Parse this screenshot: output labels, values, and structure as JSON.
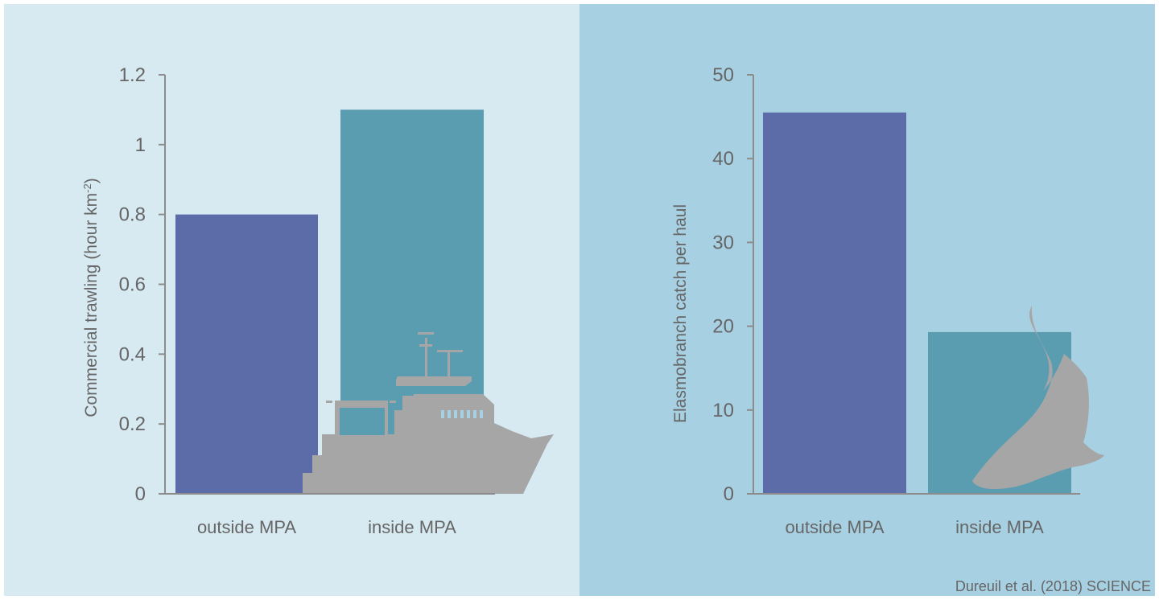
{
  "colors": {
    "left_background": "#d7eaf2",
    "right_background": "#a7d0e2",
    "outside_bar": "#5b6ca8",
    "inside_bar": "#5a9db0",
    "axis": "#8c8c8c",
    "text": "#666666",
    "silhouette": "#a6a6a6"
  },
  "icons": {
    "left_chart": "trawler-boat-icon",
    "right_chart": "shark-icon"
  },
  "credit": "Dureuil et al. (2018) SCIENCE",
  "chart_data": [
    {
      "type": "bar",
      "title": "",
      "categories": [
        "outside MPA",
        "inside MPA"
      ],
      "values": [
        0.8,
        1.1
      ],
      "ylabel_main": "Commercial trawling (hour km",
      "ylabel_sup": "-2",
      "ylabel_end": ")",
      "ylim": [
        0,
        1.2
      ],
      "yticks": [
        0,
        0.2,
        0.4,
        0.6,
        0.8,
        1,
        1.2
      ],
      "ytick_labels": [
        "0",
        "0.2",
        "0.4",
        "0.6",
        "0.8",
        "1",
        "1.2"
      ],
      "grid": false
    },
    {
      "type": "bar",
      "title": "",
      "categories": [
        "outside MPA",
        "inside MPA"
      ],
      "values": [
        45.5,
        19.3
      ],
      "ylabel_main": "Elasmobranch catch per haul",
      "ylim": [
        0,
        50
      ],
      "yticks": [
        0,
        10,
        20,
        30,
        40,
        50
      ],
      "ytick_labels": [
        "0",
        "10",
        "20",
        "30",
        "40",
        "50"
      ],
      "grid": false
    }
  ]
}
